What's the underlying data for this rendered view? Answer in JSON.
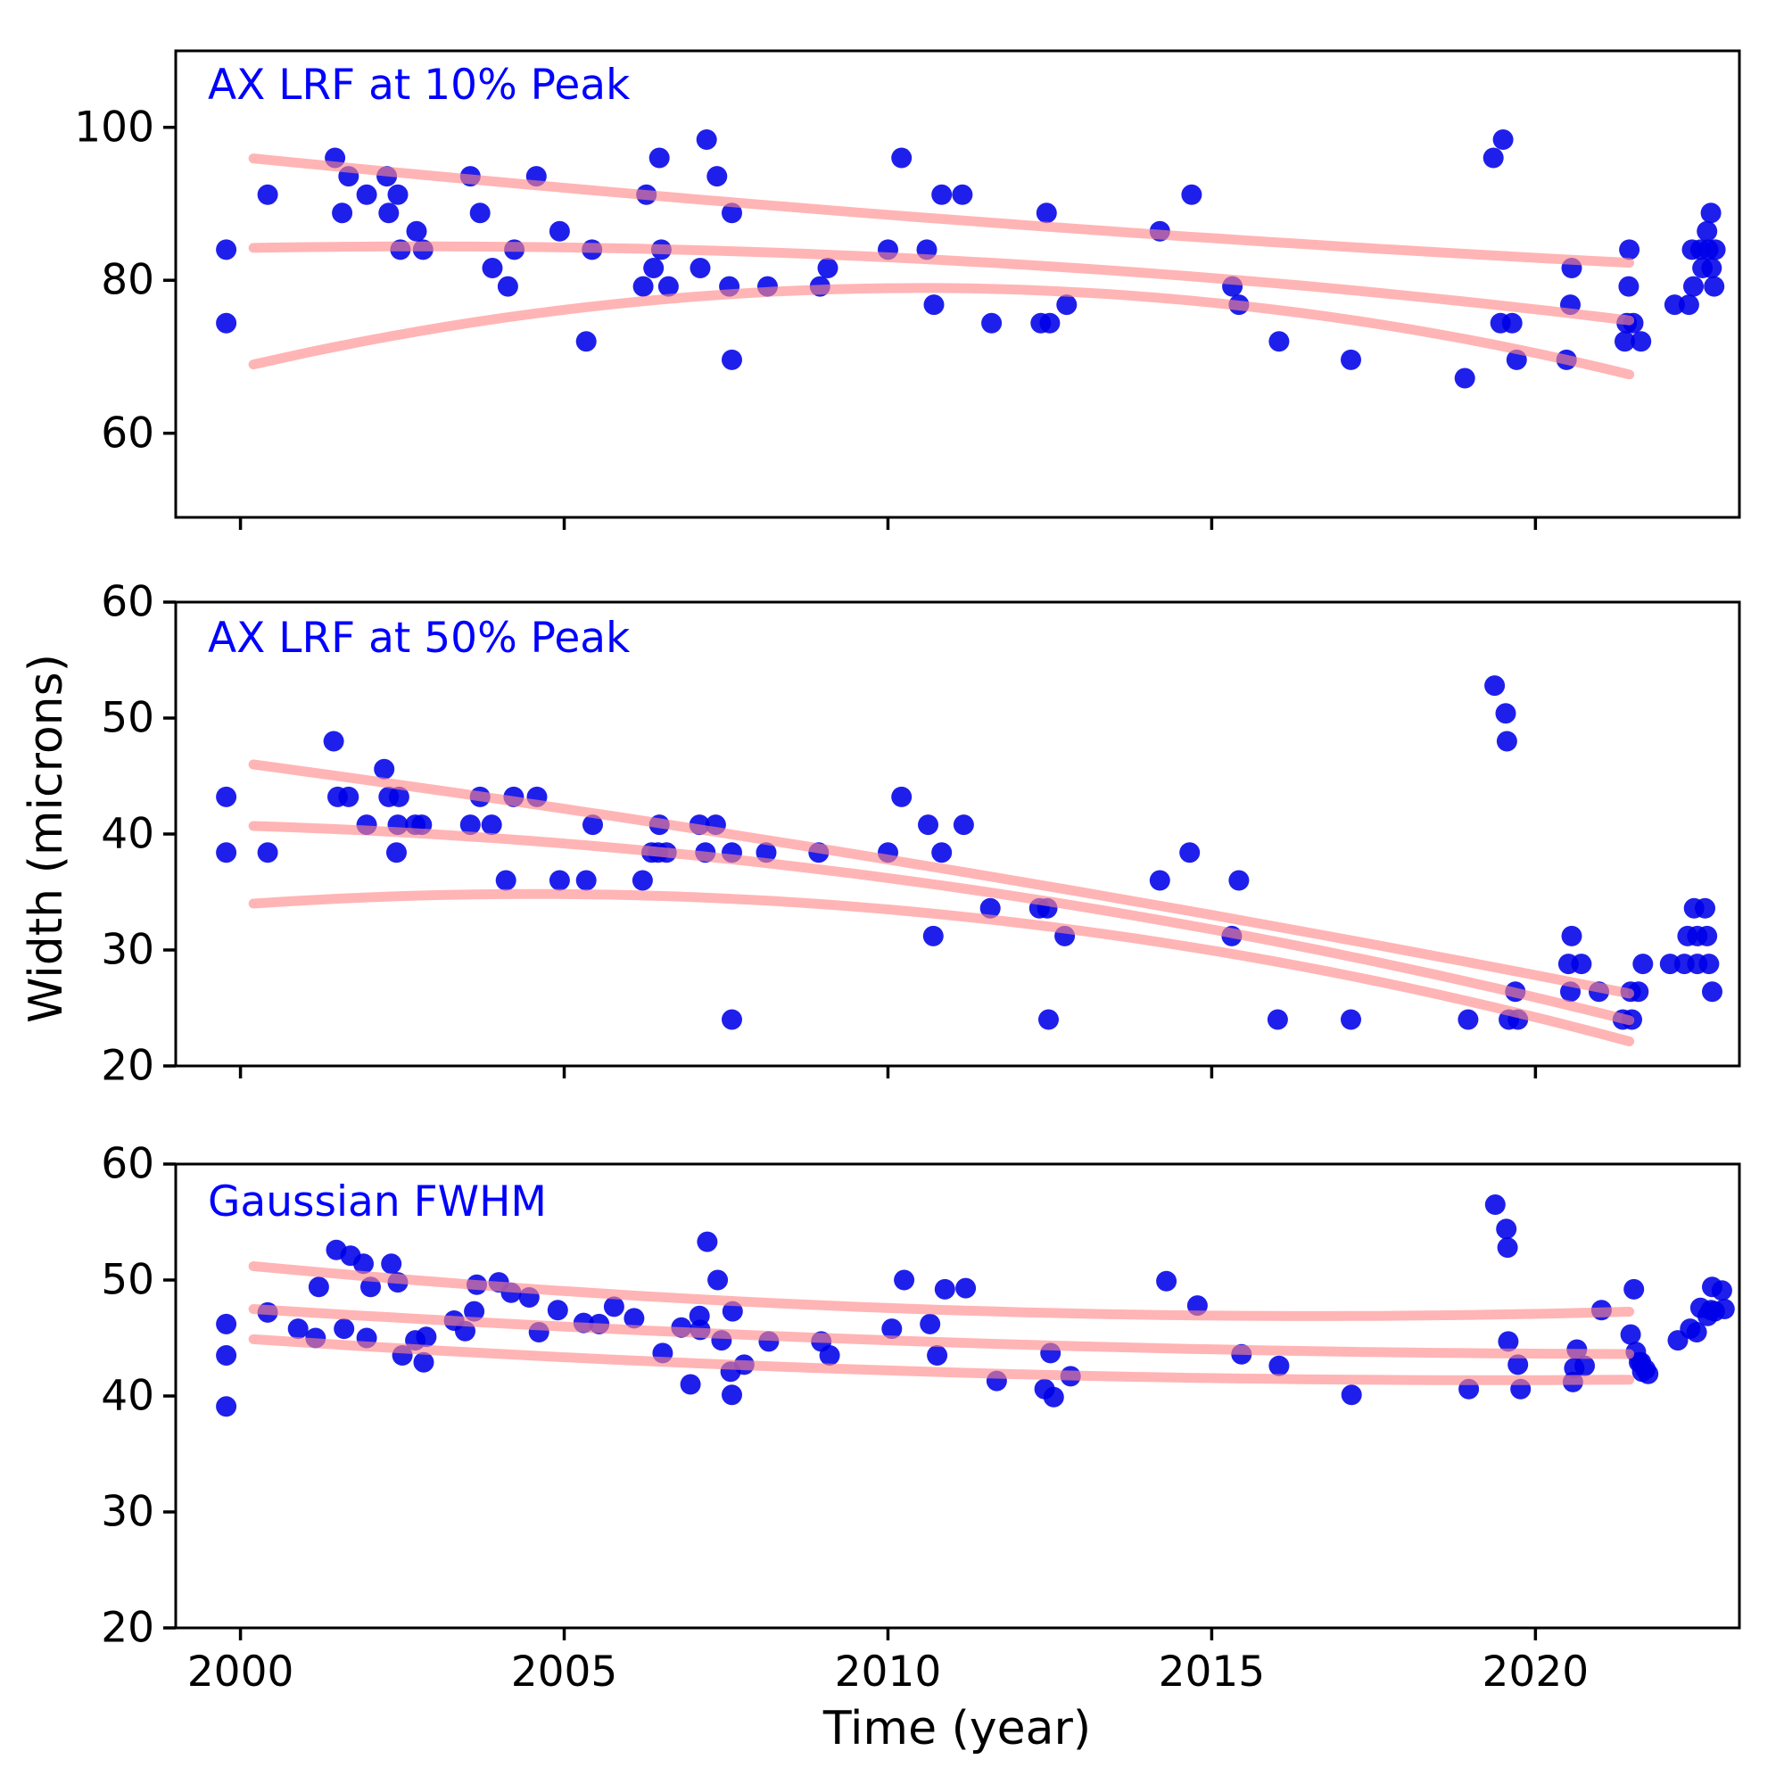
{
  "figure": {
    "xlabel": "Time (year)",
    "ylabel": "Width (microns)",
    "colors": {
      "points": "#0000e8",
      "fit_curves": "#ff8888",
      "panel_title": "#0000ff",
      "axis": "#000000",
      "background": "#ffffff"
    }
  },
  "chart_data": [
    {
      "type": "scatter",
      "title": "AX LRF at 10% Peak",
      "xlabel": "Time (year)",
      "ylabel": "Width (microns)",
      "xlim": [
        1999.0,
        2023.15
      ],
      "ylim": [
        49,
        110
      ],
      "xticks": [
        2000,
        2005,
        2010,
        2015,
        2020
      ],
      "xtick_labels": [],
      "yticks": [
        100,
        80,
        60
      ],
      "ytick_labels": [
        "100",
        "80",
        "60"
      ],
      "legend": "none",
      "grid": false,
      "points": [
        [
          1999.78,
          84.0
        ],
        [
          1999.78,
          74.4
        ],
        [
          2000.42,
          91.2
        ],
        [
          2001.46,
          96.0
        ],
        [
          2001.57,
          88.8
        ],
        [
          2001.67,
          93.6
        ],
        [
          2001.95,
          91.2
        ],
        [
          2002.26,
          93.6
        ],
        [
          2002.29,
          88.8
        ],
        [
          2002.43,
          91.2
        ],
        [
          2002.47,
          84.0
        ],
        [
          2002.72,
          86.4
        ],
        [
          2002.82,
          84.0
        ],
        [
          2003.55,
          93.6
        ],
        [
          2003.7,
          88.8
        ],
        [
          2003.89,
          81.6
        ],
        [
          2004.13,
          79.2
        ],
        [
          2004.23,
          84.0
        ],
        [
          2004.57,
          93.6
        ],
        [
          2004.93,
          86.4
        ],
        [
          2005.34,
          72.0
        ],
        [
          2005.43,
          84.0
        ],
        [
          2006.22,
          79.2
        ],
        [
          2006.27,
          91.2
        ],
        [
          2006.38,
          81.6
        ],
        [
          2006.47,
          96.0
        ],
        [
          2006.5,
          84.0
        ],
        [
          2006.61,
          79.2
        ],
        [
          2007.1,
          81.6
        ],
        [
          2007.2,
          98.4
        ],
        [
          2007.36,
          93.6
        ],
        [
          2007.55,
          79.2
        ],
        [
          2007.59,
          88.8
        ],
        [
          2007.59,
          69.6
        ],
        [
          2008.14,
          79.2
        ],
        [
          2008.95,
          79.2
        ],
        [
          2009.07,
          81.6
        ],
        [
          2010.0,
          84.0
        ],
        [
          2010.21,
          96.0
        ],
        [
          2010.6,
          84.0
        ],
        [
          2010.71,
          76.8
        ],
        [
          2010.83,
          91.2
        ],
        [
          2011.15,
          91.2
        ],
        [
          2011.6,
          74.4
        ],
        [
          2012.36,
          74.4
        ],
        [
          2012.5,
          74.4
        ],
        [
          2012.45,
          88.8
        ],
        [
          2012.76,
          76.8
        ],
        [
          2014.2,
          86.4
        ],
        [
          2014.69,
          91.2
        ],
        [
          2015.32,
          79.2
        ],
        [
          2015.42,
          76.8
        ],
        [
          2016.04,
          72.0
        ],
        [
          2017.15,
          69.6
        ],
        [
          2018.91,
          67.2
        ],
        [
          2019.35,
          96.0
        ],
        [
          2019.5,
          98.4
        ],
        [
          2019.46,
          74.4
        ],
        [
          2019.64,
          74.4
        ],
        [
          2019.71,
          69.6
        ],
        [
          2020.48,
          69.6
        ],
        [
          2020.54,
          76.8
        ],
        [
          2020.56,
          81.6
        ],
        [
          2021.38,
          72.0
        ],
        [
          2021.41,
          74.4
        ],
        [
          2021.44,
          79.2
        ],
        [
          2021.45,
          84.0
        ],
        [
          2021.51,
          74.4
        ],
        [
          2021.63,
          72.0
        ],
        [
          2022.15,
          76.8
        ],
        [
          2022.37,
          76.8
        ],
        [
          2022.42,
          84.0
        ],
        [
          2022.44,
          79.2
        ],
        [
          2022.55,
          84.0
        ],
        [
          2022.58,
          81.6
        ],
        [
          2022.65,
          86.4
        ],
        [
          2022.67,
          84.0
        ],
        [
          2022.71,
          88.8
        ],
        [
          2022.72,
          81.6
        ],
        [
          2022.76,
          79.2
        ],
        [
          2022.78,
          84.0
        ]
      ],
      "fits": [
        {
          "name": "upper-confidence",
          "a": 96.1,
          "b": -0.85,
          "c": 0.0096,
          "from": 2000.2,
          "to": 2021.45
        },
        {
          "name": "best-fit",
          "a": 84.2,
          "b": 0.16,
          "c": -0.028,
          "from": 2000.2,
          "to": 2021.45
        },
        {
          "name": "lower-confidence",
          "a": 68.6,
          "b": 1.98,
          "c": -0.0943,
          "from": 2000.2,
          "to": 2021.45
        }
      ]
    },
    {
      "type": "scatter",
      "title": "AX LRF at 50% Peak",
      "xlabel": "Time (year)",
      "ylabel": "Width (microns)",
      "xlim": [
        1999.0,
        2023.15
      ],
      "ylim": [
        20,
        60
      ],
      "xticks": [
        2000,
        2005,
        2010,
        2015,
        2020
      ],
      "xtick_labels": [],
      "yticks": [
        60,
        50,
        40,
        30,
        20
      ],
      "ytick_labels": [
        "60",
        "50",
        "40",
        "30",
        "20"
      ],
      "legend": "none",
      "grid": false,
      "points": [
        [
          1999.78,
          43.2
        ],
        [
          1999.78,
          38.4
        ],
        [
          2000.42,
          38.4
        ],
        [
          2001.44,
          48.0
        ],
        [
          2001.5,
          43.2
        ],
        [
          2001.67,
          43.2
        ],
        [
          2001.95,
          40.8
        ],
        [
          2002.22,
          45.6
        ],
        [
          2002.29,
          43.2
        ],
        [
          2002.41,
          38.4
        ],
        [
          2002.43,
          40.8
        ],
        [
          2002.45,
          43.2
        ],
        [
          2002.7,
          40.8
        ],
        [
          2002.8,
          40.8
        ],
        [
          2003.55,
          40.8
        ],
        [
          2003.7,
          43.2
        ],
        [
          2003.88,
          40.8
        ],
        [
          2004.1,
          36.0
        ],
        [
          2004.22,
          43.2
        ],
        [
          2004.58,
          43.2
        ],
        [
          2004.93,
          36.0
        ],
        [
          2005.34,
          36.0
        ],
        [
          2005.44,
          40.8
        ],
        [
          2006.21,
          36.0
        ],
        [
          2006.35,
          38.4
        ],
        [
          2006.45,
          38.4
        ],
        [
          2006.47,
          40.8
        ],
        [
          2006.58,
          38.4
        ],
        [
          2007.09,
          40.8
        ],
        [
          2007.18,
          38.4
        ],
        [
          2007.34,
          40.8
        ],
        [
          2007.59,
          38.4
        ],
        [
          2007.59,
          24.0
        ],
        [
          2008.12,
          38.4
        ],
        [
          2008.93,
          38.4
        ],
        [
          2010.0,
          38.4
        ],
        [
          2010.21,
          43.2
        ],
        [
          2010.62,
          40.8
        ],
        [
          2010.7,
          31.2
        ],
        [
          2010.83,
          38.4
        ],
        [
          2011.17,
          40.8
        ],
        [
          2011.58,
          33.6
        ],
        [
          2012.34,
          33.6
        ],
        [
          2012.46,
          33.6
        ],
        [
          2012.48,
          24.0
        ],
        [
          2012.73,
          31.2
        ],
        [
          2014.2,
          36.0
        ],
        [
          2014.66,
          38.4
        ],
        [
          2015.31,
          31.2
        ],
        [
          2015.42,
          36.0
        ],
        [
          2016.02,
          24.0
        ],
        [
          2017.15,
          24.0
        ],
        [
          2018.96,
          24.0
        ],
        [
          2019.37,
          52.8
        ],
        [
          2019.54,
          50.4
        ],
        [
          2019.56,
          48.0
        ],
        [
          2019.59,
          24.0
        ],
        [
          2019.69,
          26.4
        ],
        [
          2019.73,
          24.0
        ],
        [
          2020.51,
          28.8
        ],
        [
          2020.54,
          26.4
        ],
        [
          2020.56,
          31.2
        ],
        [
          2020.71,
          28.8
        ],
        [
          2020.98,
          26.4
        ],
        [
          2021.35,
          24.0
        ],
        [
          2021.47,
          26.4
        ],
        [
          2021.49,
          24.0
        ],
        [
          2021.59,
          26.4
        ],
        [
          2021.66,
          28.8
        ],
        [
          2022.08,
          28.8
        ],
        [
          2022.3,
          28.8
        ],
        [
          2022.5,
          28.8
        ],
        [
          2022.68,
          28.8
        ],
        [
          2022.35,
          31.2
        ],
        [
          2022.5,
          31.2
        ],
        [
          2022.65,
          31.2
        ],
        [
          2022.45,
          33.6
        ],
        [
          2022.62,
          33.6
        ],
        [
          2022.73,
          26.4
        ]
      ],
      "fits": [
        {
          "name": "upper-confidence",
          "a": 46.15,
          "b": -0.754,
          "c": -0.0081,
          "from": 2000.2,
          "to": 2021.45
        },
        {
          "name": "best-fit",
          "a": 40.73,
          "b": -0.165,
          "c": -0.0288,
          "from": 2000.2,
          "to": 2021.45
        },
        {
          "name": "lower-confidence",
          "a": 33.92,
          "b": 0.402,
          "c": -0.0444,
          "from": 2000.2,
          "to": 2021.45
        }
      ]
    },
    {
      "type": "scatter",
      "title": "Gaussian FWHM",
      "xlabel": "Time (year)",
      "ylabel": "Width (microns)",
      "xlim": [
        1999.0,
        2023.15
      ],
      "ylim": [
        20,
        60
      ],
      "xticks": [
        2000,
        2005,
        2010,
        2015,
        2020
      ],
      "xtick_labels": [
        "2000",
        "2005",
        "2010",
        "2015",
        "2020"
      ],
      "yticks": [
        60,
        50,
        40,
        30,
        20
      ],
      "ytick_labels": [
        "60",
        "50",
        "40",
        "30",
        "20"
      ],
      "legend": "none",
      "grid": false,
      "points": [
        [
          1999.78,
          46.2
        ],
        [
          1999.78,
          43.5
        ],
        [
          1999.78,
          39.1
        ],
        [
          2000.42,
          47.2
        ],
        [
          2000.89,
          45.8
        ],
        [
          2001.16,
          45.0
        ],
        [
          2001.21,
          49.4
        ],
        [
          2001.48,
          52.6
        ],
        [
          2001.7,
          52.1
        ],
        [
          2001.9,
          51.4
        ],
        [
          2001.6,
          45.8
        ],
        [
          2001.95,
          45.0
        ],
        [
          2002.01,
          49.4
        ],
        [
          2002.33,
          51.4
        ],
        [
          2002.43,
          49.8
        ],
        [
          2002.5,
          43.5
        ],
        [
          2002.7,
          44.8
        ],
        [
          2002.83,
          42.9
        ],
        [
          2002.87,
          45.1
        ],
        [
          2003.3,
          46.5
        ],
        [
          2003.47,
          45.6
        ],
        [
          2003.61,
          47.3
        ],
        [
          2003.65,
          49.6
        ],
        [
          2003.99,
          49.8
        ],
        [
          2004.18,
          48.9
        ],
        [
          2004.46,
          48.5
        ],
        [
          2004.61,
          45.5
        ],
        [
          2004.9,
          47.4
        ],
        [
          2005.3,
          46.3
        ],
        [
          2005.54,
          46.2
        ],
        [
          2005.77,
          47.7
        ],
        [
          2006.08,
          46.7
        ],
        [
          2006.52,
          43.7
        ],
        [
          2006.81,
          45.9
        ],
        [
          2006.95,
          41.0
        ],
        [
          2007.09,
          46.9
        ],
        [
          2007.43,
          44.8
        ],
        [
          2007.78,
          42.7
        ],
        [
          2007.21,
          53.3
        ],
        [
          2007.37,
          50.0
        ],
        [
          2007.1,
          45.7
        ],
        [
          2007.57,
          42.1
        ],
        [
          2007.59,
          40.1
        ],
        [
          2007.6,
          47.3
        ],
        [
          2008.16,
          44.7
        ],
        [
          2008.97,
          44.7
        ],
        [
          2009.1,
          43.5
        ],
        [
          2010.06,
          45.8
        ],
        [
          2010.25,
          50.0
        ],
        [
          2010.65,
          46.2
        ],
        [
          2010.76,
          43.5
        ],
        [
          2010.88,
          49.2
        ],
        [
          2011.2,
          49.3
        ],
        [
          2011.68,
          41.3
        ],
        [
          2012.42,
          40.6
        ],
        [
          2012.51,
          43.7
        ],
        [
          2012.56,
          39.9
        ],
        [
          2012.82,
          41.7
        ],
        [
          2014.3,
          49.9
        ],
        [
          2014.78,
          47.8
        ],
        [
          2015.46,
          43.6
        ],
        [
          2016.04,
          42.6
        ],
        [
          2017.16,
          40.1
        ],
        [
          2018.97,
          40.6
        ],
        [
          2019.38,
          56.5
        ],
        [
          2019.55,
          54.4
        ],
        [
          2019.57,
          52.8
        ],
        [
          2019.58,
          44.7
        ],
        [
          2019.73,
          42.7
        ],
        [
          2019.77,
          40.6
        ],
        [
          2020.58,
          41.2
        ],
        [
          2020.6,
          42.4
        ],
        [
          2020.64,
          44.0
        ],
        [
          2020.76,
          42.6
        ],
        [
          2021.02,
          47.4
        ],
        [
          2021.47,
          45.3
        ],
        [
          2021.52,
          49.2
        ],
        [
          2021.55,
          43.8
        ],
        [
          2021.6,
          42.9
        ],
        [
          2021.63,
          42.9
        ],
        [
          2021.65,
          42.1
        ],
        [
          2021.7,
          42.3
        ],
        [
          2021.74,
          41.9
        ],
        [
          2022.2,
          44.8
        ],
        [
          2022.39,
          45.8
        ],
        [
          2022.49,
          45.5
        ],
        [
          2022.55,
          47.6
        ],
        [
          2022.66,
          46.9
        ],
        [
          2022.71,
          47.4
        ],
        [
          2022.73,
          49.4
        ],
        [
          2022.77,
          47.3
        ],
        [
          2022.88,
          49.1
        ],
        [
          2022.92,
          47.5
        ]
      ],
      "fits": [
        {
          "name": "upper-confidence",
          "a": 51.3,
          "b": -0.531,
          "c": 0.016,
          "from": 2000.2,
          "to": 2021.45
        },
        {
          "name": "best-fit",
          "a": 47.57,
          "b": -0.358,
          "c": 0.0081,
          "from": 2000.2,
          "to": 2021.45
        },
        {
          "name": "lower-confidence",
          "a": 44.97,
          "b": -0.374,
          "c": 0.0097,
          "from": 2000.2,
          "to": 2021.45
        }
      ]
    }
  ]
}
